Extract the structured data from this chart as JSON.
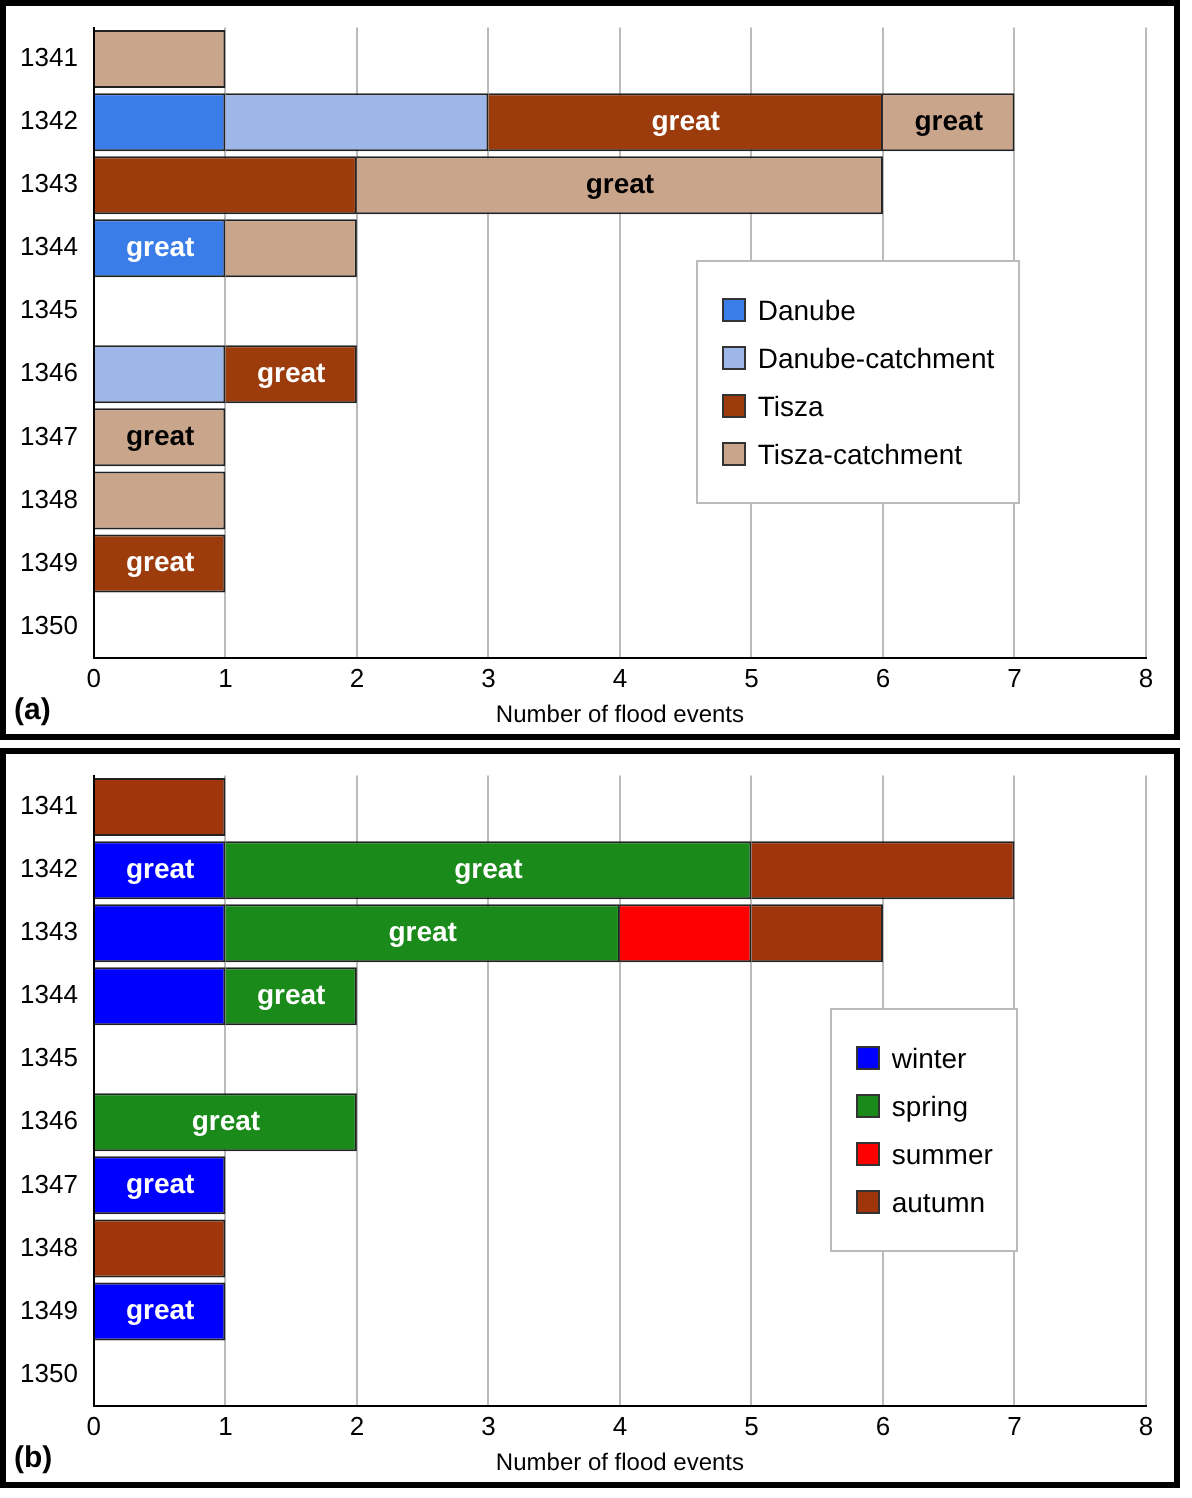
{
  "chart_data": [
    {
      "type": "bar",
      "orientation": "horizontal",
      "stacked": true,
      "xlabel": "Number of flood events",
      "categories": [
        "1341",
        "1342",
        "1343",
        "1344",
        "1345",
        "1346",
        "1347",
        "1348",
        "1349",
        "1350"
      ],
      "xlim": [
        0,
        8
      ],
      "xticks": [
        0,
        1,
        2,
        3,
        4,
        5,
        6,
        7,
        8
      ],
      "grid": "x",
      "legend": "right",
      "annotations": [
        "(a)"
      ],
      "series": [
        {
          "name": "Danube",
          "color": "#3a7de8",
          "values": [
            null,
            1,
            null,
            1,
            null,
            null,
            null,
            null,
            null,
            null
          ],
          "value_labels": [
            null,
            null,
            null,
            "great",
            null,
            null,
            null,
            null,
            null,
            null
          ]
        },
        {
          "name": "Danube-catchment",
          "color": "#9db8e8",
          "values": [
            null,
            2,
            null,
            null,
            null,
            1,
            null,
            null,
            null,
            null
          ],
          "value_labels": [
            null,
            null,
            null,
            null,
            null,
            null,
            null,
            null,
            null,
            null
          ]
        },
        {
          "name": "Tisza",
          "color": "#9c3b0b",
          "values": [
            null,
            3,
            2,
            null,
            null,
            1,
            null,
            null,
            1,
            null
          ],
          "value_labels": [
            null,
            "great",
            null,
            null,
            null,
            "great",
            null,
            null,
            "great",
            null
          ]
        },
        {
          "name": "Tisza-catchment",
          "color": "#c9a58c",
          "values": [
            1,
            1,
            4,
            1,
            null,
            null,
            1,
            1,
            null,
            null
          ],
          "value_labels": [
            null,
            "great",
            "great",
            null,
            null,
            null,
            "great",
            null,
            null,
            null
          ]
        }
      ]
    },
    {
      "type": "bar",
      "orientation": "horizontal",
      "stacked": true,
      "xlabel": "Number of flood events",
      "categories": [
        "1341",
        "1342",
        "1343",
        "1344",
        "1345",
        "1346",
        "1347",
        "1348",
        "1349",
        "1350"
      ],
      "xlim": [
        0,
        8
      ],
      "xticks": [
        0,
        1,
        2,
        3,
        4,
        5,
        6,
        7,
        8
      ],
      "grid": "x",
      "legend": "right",
      "annotations": [
        "(b)"
      ],
      "series": [
        {
          "name": "winter",
          "color": "#0000ff",
          "values": [
            null,
            1,
            1,
            1,
            null,
            null,
            1,
            null,
            1,
            null
          ],
          "value_labels": [
            null,
            "great",
            null,
            null,
            null,
            null,
            "great",
            null,
            "great",
            null
          ]
        },
        {
          "name": "spring",
          "color": "#1a8a1a",
          "values": [
            null,
            4,
            3,
            1,
            null,
            2,
            null,
            null,
            null,
            null
          ],
          "value_labels": [
            null,
            "great",
            "great",
            "great",
            null,
            "great",
            null,
            null,
            null,
            null
          ]
        },
        {
          "name": "summer",
          "color": "#ff0000",
          "values": [
            null,
            null,
            1,
            null,
            null,
            null,
            null,
            null,
            null,
            null
          ],
          "value_labels": [
            null,
            null,
            null,
            null,
            null,
            null,
            null,
            null,
            null,
            null
          ]
        },
        {
          "name": "autumn",
          "color": "#a0340a",
          "values": [
            1,
            2,
            1,
            null,
            null,
            null,
            null,
            1,
            null,
            null
          ],
          "value_labels": [
            null,
            null,
            null,
            null,
            null,
            null,
            null,
            null,
            null,
            null
          ]
        }
      ]
    }
  ]
}
